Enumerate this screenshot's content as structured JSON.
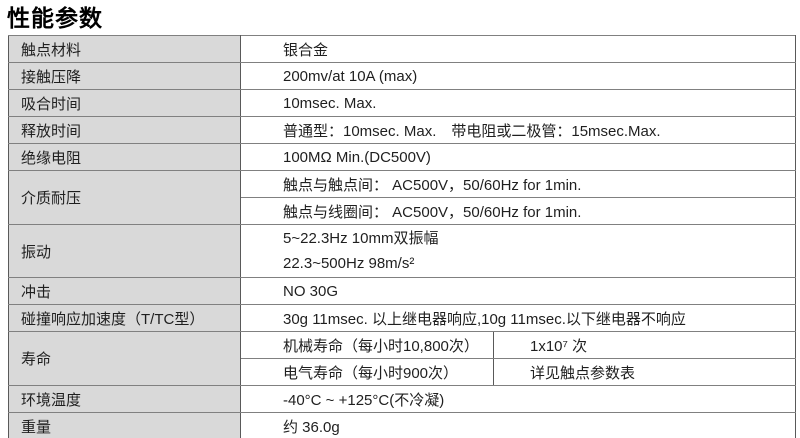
{
  "title": "性能参数",
  "colors": {
    "label_column_bg": "#d9d9d9",
    "border_vertical": "#595959",
    "border_horizontal": "#808080",
    "text": "#1f1f1f",
    "page_bg": "#ffffff"
  },
  "table": {
    "rows": [
      {
        "label": "触点材料",
        "value": "银合金"
      },
      {
        "label": "接触压降",
        "value": "200mv/at 10A (max)"
      },
      {
        "label": "吸合时间",
        "value": "10msec. Max."
      },
      {
        "label": "释放时间",
        "value": "普通型：10msec. Max.　带电阻或二极管：15msec.Max."
      },
      {
        "label": "绝缘电阻",
        "value": "100MΩ Min.(DC500V)"
      },
      {
        "label": "介质耐压",
        "sub_rows": [
          "触点与触点间： AC500V，50/60Hz for 1min.",
          "触点与线圈间： AC500V，50/60Hz for 1min."
        ]
      },
      {
        "label": "振动",
        "lines": [
          "5~22.3Hz 10mm双振幅",
          "22.3~500Hz 98m/s²"
        ]
      },
      {
        "label": "冲击",
        "value": "NO 30G"
      },
      {
        "label": "碰撞响应加速度（T/TC型）",
        "value": "30g 11msec. 以上继电器响应,10g 11msec.以下继电器不响应"
      },
      {
        "label": "寿命",
        "sub_table": [
          {
            "left": "机械寿命（每小时10,800次）",
            "right": "1x10⁷ 次"
          },
          {
            "left": "电气寿命（每小时900次）",
            "right": "详见触点参数表"
          }
        ]
      },
      {
        "label": "环境温度",
        "value": "-40°C ~ +125°C(不冷凝)"
      },
      {
        "label": "重量",
        "value": "约 36.0g"
      }
    ]
  }
}
